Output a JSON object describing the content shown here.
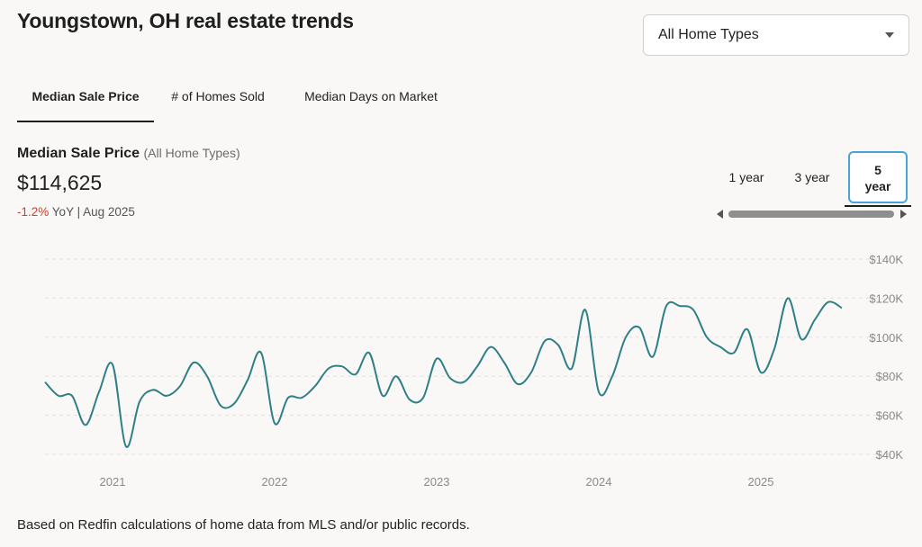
{
  "header": {
    "title": "Youngstown, OH real estate trends",
    "home_type_select": "All Home Types"
  },
  "tabs": [
    {
      "label": "Median Sale Price",
      "active": true
    },
    {
      "label": "# of Homes Sold",
      "active": false
    },
    {
      "label": "Median Days on Market",
      "active": false
    }
  ],
  "metric": {
    "name": "Median Sale Price",
    "filter": "(All Home Types)",
    "value": "$114,625",
    "change": "-1.2%",
    "change_suffix": "YoY | Aug 2025"
  },
  "range_buttons": [
    {
      "label": "1 year",
      "active": false
    },
    {
      "label": "3 year",
      "active": false
    },
    {
      "label": "5 year",
      "label_lines": [
        "5",
        "year"
      ],
      "active": true
    }
  ],
  "colors": {
    "line": "#2e7f86",
    "negative": "#c8412b",
    "active_border": "#4aa3d6"
  },
  "chart_data": {
    "type": "line",
    "title": "",
    "xlabel": "",
    "ylabel": "",
    "x_ticks": [
      "2021",
      "2022",
      "2023",
      "2024",
      "2025"
    ],
    "y_ticks": [
      "$40K",
      "$60K",
      "$80K",
      "$100K",
      "$120K",
      "$140K"
    ],
    "ylim": [
      40000,
      140000
    ],
    "grid": true,
    "series": [
      {
        "values": [
          {
            "x": "2020-08",
            "y": 77000
          },
          {
            "x": "2020-09",
            "y": 70000
          },
          {
            "x": "2020-10",
            "y": 70000
          },
          {
            "x": "2020-11",
            "y": 55000
          },
          {
            "x": "2020-12",
            "y": 72000
          },
          {
            "x": "2021-01",
            "y": 86000
          },
          {
            "x": "2021-02",
            "y": 44000
          },
          {
            "x": "2021-03",
            "y": 67000
          },
          {
            "x": "2021-04",
            "y": 73000
          },
          {
            "x": "2021-05",
            "y": 70000
          },
          {
            "x": "2021-06",
            "y": 75000
          },
          {
            "x": "2021-07",
            "y": 87000
          },
          {
            "x": "2021-08",
            "y": 80000
          },
          {
            "x": "2021-09",
            "y": 65000
          },
          {
            "x": "2021-10",
            "y": 66000
          },
          {
            "x": "2021-11",
            "y": 78000
          },
          {
            "x": "2021-12",
            "y": 92000
          },
          {
            "x": "2022-01",
            "y": 56000
          },
          {
            "x": "2022-02",
            "y": 69000
          },
          {
            "x": "2022-03",
            "y": 69000
          },
          {
            "x": "2022-04",
            "y": 75000
          },
          {
            "x": "2022-05",
            "y": 84000
          },
          {
            "x": "2022-06",
            "y": 85000
          },
          {
            "x": "2022-07",
            "y": 81000
          },
          {
            "x": "2022-08",
            "y": 92000
          },
          {
            "x": "2022-09",
            "y": 70000
          },
          {
            "x": "2022-10",
            "y": 80000
          },
          {
            "x": "2022-11",
            "y": 68000
          },
          {
            "x": "2022-12",
            "y": 69000
          },
          {
            "x": "2023-01",
            "y": 89000
          },
          {
            "x": "2023-02",
            "y": 79000
          },
          {
            "x": "2023-03",
            "y": 77000
          },
          {
            "x": "2023-04",
            "y": 85000
          },
          {
            "x": "2023-05",
            "y": 95000
          },
          {
            "x": "2023-06",
            "y": 87000
          },
          {
            "x": "2023-07",
            "y": 76000
          },
          {
            "x": "2023-08",
            "y": 82000
          },
          {
            "x": "2023-09",
            "y": 98000
          },
          {
            "x": "2023-10",
            "y": 96000
          },
          {
            "x": "2023-11",
            "y": 84000
          },
          {
            "x": "2023-12",
            "y": 114000
          },
          {
            "x": "2024-01",
            "y": 72000
          },
          {
            "x": "2024-02",
            "y": 80000
          },
          {
            "x": "2024-03",
            "y": 100000
          },
          {
            "x": "2024-04",
            "y": 105000
          },
          {
            "x": "2024-05",
            "y": 90000
          },
          {
            "x": "2024-06",
            "y": 116000
          },
          {
            "x": "2024-07",
            "y": 116000
          },
          {
            "x": "2024-08",
            "y": 114000
          },
          {
            "x": "2024-09",
            "y": 100000
          },
          {
            "x": "2024-10",
            "y": 95000
          },
          {
            "x": "2024-11",
            "y": 92000
          },
          {
            "x": "2024-12",
            "y": 104000
          },
          {
            "x": "2025-01",
            "y": 82000
          },
          {
            "x": "2025-02",
            "y": 94000
          },
          {
            "x": "2025-03",
            "y": 120000
          },
          {
            "x": "2025-04",
            "y": 99000
          },
          {
            "x": "2025-05",
            "y": 109000
          },
          {
            "x": "2025-06",
            "y": 118000
          },
          {
            "x": "2025-07",
            "y": 115000
          }
        ]
      }
    ]
  },
  "footnote": "Based on Redfin calculations of home data from MLS and/or public records."
}
